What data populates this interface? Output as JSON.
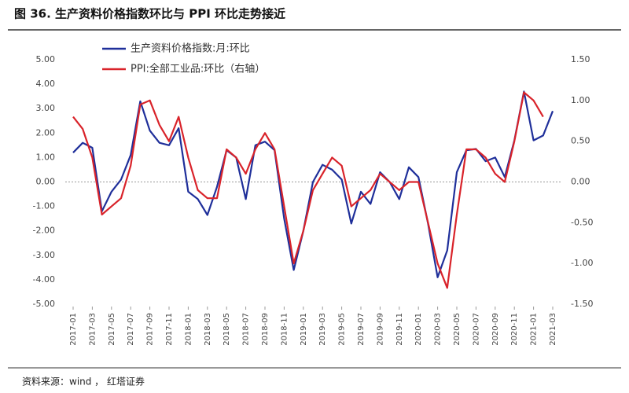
{
  "chart_data": {
    "type": "line",
    "title": "图 36. 生产资料价格指数环比与 PPI 环比走势接近",
    "source": "资料来源：wind ， 红塔证券",
    "categories": [
      "2017-01",
      null,
      "2017-03",
      null,
      "2017-05",
      null,
      "2017-07",
      null,
      "2017-09",
      null,
      "2017-11",
      null,
      "2018-01",
      null,
      "2018-03",
      null,
      "2018-05",
      null,
      "2018-07",
      null,
      "2018-09",
      null,
      "2018-11",
      null,
      "2019-01",
      null,
      "2019-03",
      null,
      "2019-05",
      null,
      "2019-07",
      null,
      "2019-09",
      null,
      "2019-11",
      null,
      "2020-01",
      null,
      "2020-03",
      null,
      "2020-05",
      null,
      "2020-07",
      null,
      "2020-09",
      null,
      "2020-11",
      null,
      "2021-01",
      null,
      "2021-03"
    ],
    "series": [
      {
        "name": "生产资料价格指数:月:环比",
        "color": "#1f2f9a",
        "values": [
          1.2,
          1.6,
          1.4,
          -1.2,
          -0.4,
          0.1,
          1.1,
          3.3,
          2.1,
          1.6,
          1.5,
          2.2,
          -0.4,
          -0.7,
          -1.35,
          -0.2,
          1.3,
          1.0,
          -0.7,
          1.5,
          1.65,
          1.3,
          -1.5,
          -3.6,
          -2.0,
          0.0,
          0.7,
          0.5,
          0.1,
          -1.7,
          -0.4,
          -0.9,
          0.4,
          0.0,
          -0.7,
          0.6,
          0.2,
          -1.7,
          -3.9,
          -2.8,
          0.4,
          1.3,
          1.35,
          0.85,
          1.0,
          0.2,
          1.7,
          3.7,
          1.7,
          1.9,
          2.9
        ]
      },
      {
        "name": "PPI:全部工业品:环比（右轴）",
        "color": "#d9232a",
        "axis": "y2",
        "values": [
          0.8,
          0.65,
          0.3,
          -0.4,
          -0.3,
          -0.2,
          0.2,
          0.95,
          1.0,
          0.7,
          0.5,
          0.8,
          0.3,
          -0.1,
          -0.2,
          -0.2,
          0.4,
          0.3,
          0.1,
          0.4,
          0.6,
          0.4,
          -0.3,
          -1.0,
          -0.6,
          -0.1,
          0.1,
          0.3,
          0.2,
          -0.3,
          -0.2,
          -0.1,
          0.1,
          0.0,
          -0.1,
          0.0,
          0.0,
          -0.5,
          -1.0,
          -1.3,
          -0.4,
          0.4,
          0.4,
          0.3,
          0.1,
          0.0,
          0.5,
          1.1,
          1.0,
          0.8,
          null
        ]
      }
    ],
    "ylim": [
      -5,
      5
    ],
    "yticks": [
      {
        "value": 5,
        "label": "5.00"
      },
      {
        "value": 4,
        "label": "4.00"
      },
      {
        "value": 3,
        "label": "3.00"
      },
      {
        "value": 2,
        "label": "2.00"
      },
      {
        "value": 1,
        "label": "1.00"
      },
      {
        "value": 0,
        "label": "0.00"
      },
      {
        "value": -1,
        "label": "-1.00"
      },
      {
        "value": -2,
        "label": "-2.00"
      },
      {
        "value": -3,
        "label": "-3.00"
      },
      {
        "value": -4,
        "label": "-4.00"
      },
      {
        "value": -5,
        "label": "-5.00"
      }
    ],
    "y2lim": [
      -1.5,
      1.5
    ],
    "y2ticks": [
      {
        "value": 1.5,
        "label": "1.50"
      },
      {
        "value": 1,
        "label": "1.00"
      },
      {
        "value": 0.5,
        "label": "0.50"
      },
      {
        "value": 0,
        "label": "0.00"
      },
      {
        "value": -0.5,
        "label": "-0.50"
      },
      {
        "value": -1,
        "label": "-1.00"
      },
      {
        "value": -1.5,
        "label": "-1.50"
      }
    ],
    "legend": "upper left"
  }
}
